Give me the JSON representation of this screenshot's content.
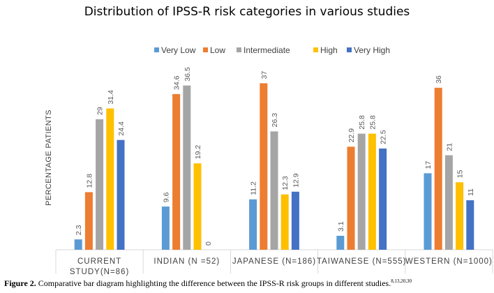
{
  "chart_data": {
    "type": "bar",
    "title": "Distribution of IPSS-R risk categories in various studies",
    "xlabel": "",
    "ylabel": "PERCENTAGE PATIENTS",
    "ylim": [
      0,
      40
    ],
    "grid": false,
    "legend_position": "top",
    "categories": [
      [
        "CURRENT",
        "STUDY(N=86)"
      ],
      [
        "INDIAN  (N =52)"
      ],
      [
        "JAPANESE (N=186)"
      ],
      [
        "TAIWANESE (N=555)"
      ],
      [
        "WESTERN (N=1000)"
      ]
    ],
    "series": [
      {
        "name": "Very Low",
        "color": "#5B9BD5",
        "values": [
          2.3,
          9.6,
          11.2,
          3.1,
          17
        ],
        "labels": [
          "2.3",
          "9.6",
          "11.2",
          "3.1",
          "17"
        ]
      },
      {
        "name": "Low",
        "color": "#ED7D31",
        "values": [
          12.8,
          34.6,
          37,
          22.9,
          36
        ],
        "labels": [
          "12.8",
          "34.6",
          "37",
          "22.9",
          "36"
        ]
      },
      {
        "name": "Intermediate",
        "color": "#A5A5A5",
        "values": [
          29,
          36.5,
          26.3,
          25.8,
          21
        ],
        "labels": [
          "29",
          "36.5",
          "26.3",
          "25.8",
          "21"
        ]
      },
      {
        "name": "High",
        "color": "#FFC000",
        "values": [
          31.4,
          19.2,
          12.3,
          25.8,
          15
        ],
        "labels": [
          "31.4",
          "19.2",
          "12.3",
          "25.8",
          "15"
        ]
      },
      {
        "name": "Very High",
        "color": "#4472C4",
        "values": [
          24.4,
          0,
          12.9,
          22.5,
          11
        ],
        "labels": [
          "24.4",
          "0",
          "12.9",
          "22.5",
          "11"
        ]
      }
    ]
  },
  "caption": {
    "label": "Figure 2.",
    "text": " Comparative bar diagram highlighting the difference between the IPSS-R risk groups in different studies.",
    "refs": "8,13,20,30"
  }
}
